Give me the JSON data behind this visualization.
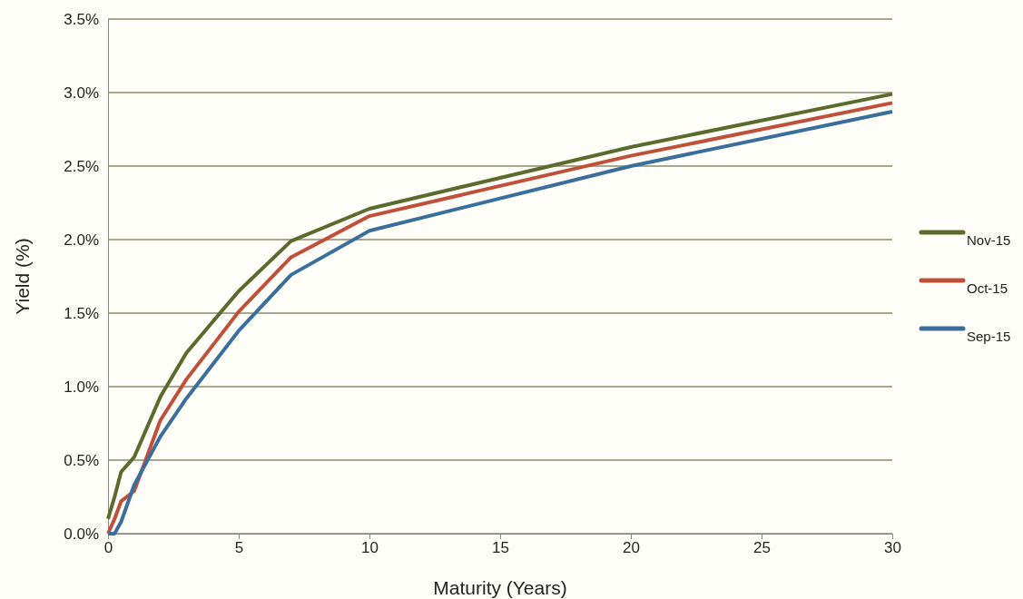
{
  "chart_data": {
    "type": "line",
    "xlabel": "Maturity (Years)",
    "ylabel": "Yield (%)",
    "x": [
      0,
      0.25,
      0.5,
      1,
      2,
      3,
      5,
      7,
      10,
      20,
      30
    ],
    "series": [
      {
        "name": "Nov-15",
        "color": "#5b6b2b",
        "values": [
          0.1,
          0.25,
          0.42,
          0.52,
          0.93,
          1.23,
          1.65,
          1.99,
          2.21,
          2.63,
          2.99
        ]
      },
      {
        "name": "Oct-15",
        "color": "#c0503a",
        "values": [
          0,
          0.1,
          0.22,
          0.29,
          0.77,
          1.05,
          1.51,
          1.88,
          2.16,
          2.57,
          2.93
        ]
      },
      {
        "name": "Sep-15",
        "color": "#3a6e9c",
        "values": [
          0,
          0,
          0.08,
          0.33,
          0.66,
          0.92,
          1.38,
          1.76,
          2.06,
          2.5,
          2.87
        ]
      }
    ],
    "xlim": [
      0,
      30
    ],
    "xticks": [
      0,
      5,
      10,
      15,
      20,
      25,
      30
    ],
    "ylim": [
      0,
      3.5
    ],
    "yticks": [
      {
        "value": 0,
        "label": "0.0%"
      },
      {
        "value": 0.5,
        "label": "0.5%"
      },
      {
        "value": 1,
        "label": "1.0%"
      },
      {
        "value": 1.5,
        "label": "1.5%"
      },
      {
        "value": 2,
        "label": "2.0%"
      },
      {
        "value": 2.5,
        "label": "2.5%"
      },
      {
        "value": 3,
        "label": "3.0%"
      },
      {
        "value": 3.5,
        "label": "3.5%"
      }
    ],
    "grid": "y",
    "legend": "right",
    "marker": "none",
    "line_style": "solid"
  }
}
